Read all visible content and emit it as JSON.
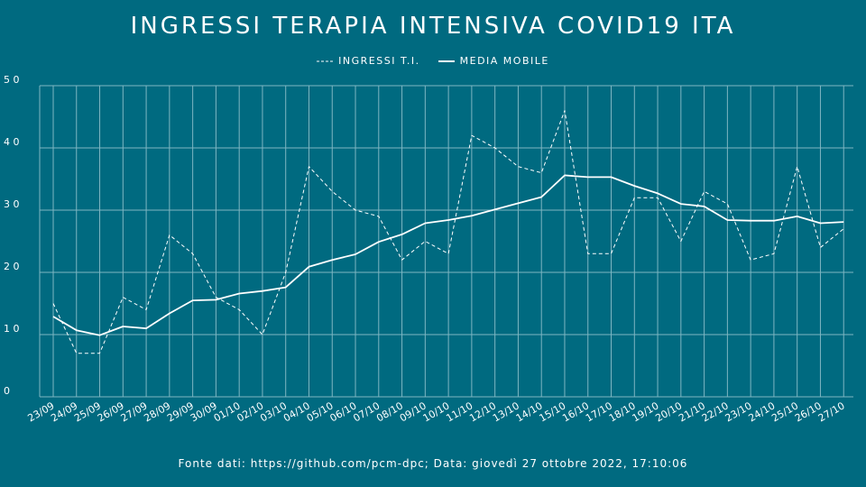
{
  "chart_data": {
    "type": "line",
    "title": "INGRESSI TERAPIA INTENSIVA COVID19 ITA",
    "categories": [
      "23/09",
      "24/09",
      "25/09",
      "26/09",
      "27/09",
      "28/09",
      "29/09",
      "30/09",
      "01/10",
      "02/10",
      "03/10",
      "04/10",
      "05/10",
      "06/10",
      "07/10",
      "08/10",
      "09/10",
      "10/10",
      "11/10",
      "12/10",
      "13/10",
      "14/10",
      "15/10",
      "16/10",
      "17/10",
      "18/10",
      "19/10",
      "20/10",
      "21/10",
      "22/10",
      "23/10",
      "24/10",
      "25/10",
      "26/10",
      "27/10"
    ],
    "series": [
      {
        "name": "INGRESSI T.I.",
        "style": "dashed",
        "values": [
          15,
          7,
          7,
          16,
          14,
          26,
          23,
          16,
          14,
          10,
          20,
          37,
          33,
          30,
          29,
          22,
          25,
          23,
          42,
          40,
          37,
          36,
          46,
          23,
          23,
          32,
          32,
          25,
          33,
          31,
          22,
          23,
          37,
          24,
          27
        ]
      },
      {
        "name": "MEDIA MOBILE",
        "style": "solid",
        "values": [
          12.9,
          10.7,
          9.9,
          11.3,
          11.0,
          13.4,
          15.5,
          15.6,
          16.6,
          17.0,
          17.6,
          20.9,
          22.0,
          22.9,
          24.9,
          26.1,
          27.9,
          28.4,
          29.1,
          30.1,
          31.1,
          32.1,
          35.6,
          35.3,
          35.3,
          33.9,
          32.7,
          31.0,
          30.6,
          28.4,
          28.3,
          28.3,
          29.0,
          27.9,
          28.1
        ]
      }
    ],
    "yticks": [
      0,
      10,
      20,
      30,
      40,
      50
    ],
    "ylim": [
      0,
      50
    ],
    "grid": true,
    "legend_position": "top-center",
    "colors": {
      "background": "#006a80",
      "foreground": "#ffffff",
      "grid": "#7fb6c2"
    }
  },
  "footer": "Fonte dati: https://github.com/pcm-dpc; Data: giovedì 27 ottobre 2022, 17:10:06"
}
